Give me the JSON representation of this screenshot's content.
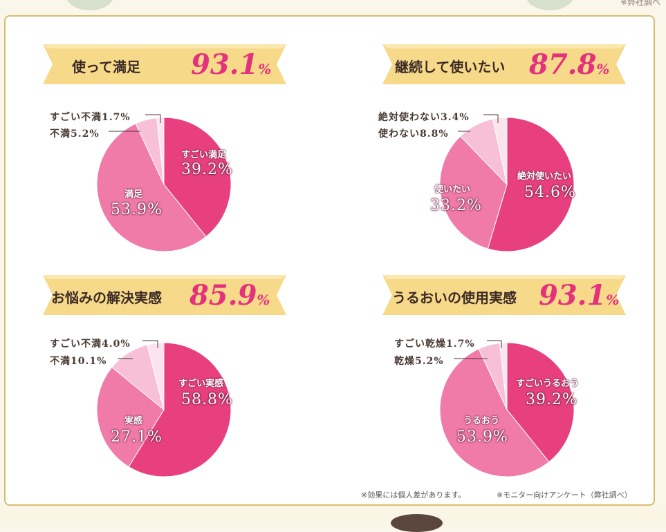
{
  "header_note": "※弊社調べ",
  "footnotes": [
    "※効果には個人差があります。",
    "※モニター向けアンケート（弊社調べ）"
  ],
  "colors": {
    "accent": "#e4317d",
    "banner": "#f7d98a",
    "slice_dark": "#e8407f",
    "slice_mid": "#f07aa8",
    "slice_light": "#f8c0d6",
    "slice_lightest": "#fce4ee",
    "border": "#d8bb6e"
  },
  "chart_data": [
    {
      "type": "pie",
      "title": "使って満足",
      "title_value": "93.1",
      "title_unit": "%",
      "slices": [
        {
          "name": "すごい満足",
          "value": 39.2,
          "label": "39.2%"
        },
        {
          "name": "満足",
          "value": 53.9,
          "label": "53.9%"
        },
        {
          "name": "不満",
          "value": 5.2,
          "label": "不満5.2%"
        },
        {
          "name": "すごい不満",
          "value": 1.7,
          "label": "すごい不満1.7%"
        }
      ]
    },
    {
      "type": "pie",
      "title": "継続して使いたい",
      "title_value": "87.8",
      "title_unit": "%",
      "slices": [
        {
          "name": "絶対使いたい",
          "value": 54.6,
          "label": "54.6%"
        },
        {
          "name": "使いたい",
          "value": 33.2,
          "label": "33.2%"
        },
        {
          "name": "使わない",
          "value": 8.8,
          "label": "使わない8.8%"
        },
        {
          "name": "絶対使わない",
          "value": 3.4,
          "label": "絶対使わない3.4%"
        }
      ]
    },
    {
      "type": "pie",
      "title": "お悩みの解決実感",
      "title_value": "85.9",
      "title_unit": "%",
      "slices": [
        {
          "name": "すごい実感",
          "value": 58.8,
          "label": "58.8%"
        },
        {
          "name": "実感",
          "value": 27.1,
          "label": "27.1%"
        },
        {
          "name": "不満",
          "value": 10.1,
          "label": "不満10.1%"
        },
        {
          "name": "すごい不満",
          "value": 4.0,
          "label": "すごい不満4.0%"
        }
      ]
    },
    {
      "type": "pie",
      "title": "うるおいの使用実感",
      "title_value": "93.1",
      "title_unit": "%",
      "slices": [
        {
          "name": "すごいうるおう",
          "value": 39.2,
          "label": "39.2%"
        },
        {
          "name": "うるおう",
          "value": 53.9,
          "label": "53.9%"
        },
        {
          "name": "乾燥",
          "value": 5.2,
          "label": "乾燥5.2%"
        },
        {
          "name": "すごい乾燥",
          "value": 1.7,
          "label": "すごい乾燥1.7%"
        }
      ]
    }
  ]
}
